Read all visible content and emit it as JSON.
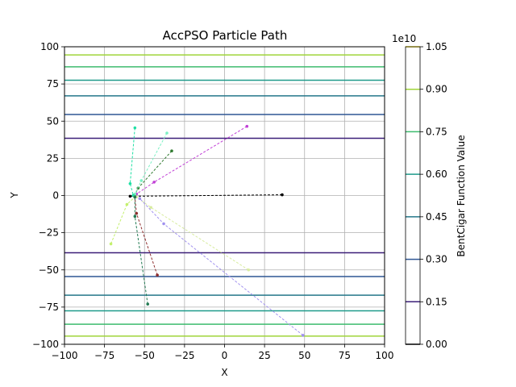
{
  "chart_data": {
    "type": "line",
    "title": "AccPSO Particle Path",
    "xlabel": "X",
    "ylabel": "Y",
    "xlim": [
      -100,
      100
    ],
    "ylim": [
      -100,
      100
    ],
    "xticks": [
      -100,
      -75,
      -50,
      -25,
      0,
      25,
      50,
      75,
      100
    ],
    "yticks": [
      -100,
      -75,
      -50,
      -25,
      0,
      25,
      50,
      75,
      100
    ],
    "xtick_labels": [
      "−100",
      "−75",
      "−50",
      "−25",
      "0",
      "25",
      "50",
      "75",
      "100"
    ],
    "ytick_labels": [
      "−100",
      "−75",
      "−50",
      "−25",
      "0",
      "25",
      "50",
      "75",
      "100"
    ],
    "grid": true,
    "contours": [
      {
        "y": 38.5,
        "level": 0.15,
        "color": "#3b1f78"
      },
      {
        "y": -38.5,
        "level": 0.15,
        "color": "#3b1f78"
      },
      {
        "y": 54.5,
        "level": 0.3,
        "color": "#2f5694"
      },
      {
        "y": -54.5,
        "level": 0.3,
        "color": "#2f5694"
      },
      {
        "y": 67.0,
        "level": 0.45,
        "color": "#24778a"
      },
      {
        "y": -67.0,
        "level": 0.45,
        "color": "#24778a"
      },
      {
        "y": 77.5,
        "level": 0.6,
        "color": "#1f9a8a"
      },
      {
        "y": -77.5,
        "level": 0.6,
        "color": "#1f9a8a"
      },
      {
        "y": 86.5,
        "level": 0.75,
        "color": "#3dbb6e"
      },
      {
        "y": -86.5,
        "level": 0.75,
        "color": "#3dbb6e"
      },
      {
        "y": 94.5,
        "level": 0.9,
        "color": "#9fd43a"
      },
      {
        "y": -94.5,
        "level": 0.9,
        "color": "#9fd43a"
      }
    ],
    "series": [
      {
        "color": "#000000",
        "points": [
          [
            36,
            0.5
          ],
          [
            -59,
            -0.5
          ],
          [
            -57,
            0
          ]
        ]
      },
      {
        "color": "#c13fd6",
        "points": [
          [
            14,
            46.5
          ],
          [
            -44,
            9
          ],
          [
            -55,
            1
          ]
        ]
      },
      {
        "color": "#2f7a2f",
        "points": [
          [
            -33,
            30
          ],
          [
            -54,
            5
          ],
          [
            -56,
            0.5
          ]
        ]
      },
      {
        "color": "#7cf0c4",
        "points": [
          [
            -36,
            42
          ],
          [
            -52,
            10
          ],
          [
            -56,
            1
          ]
        ]
      },
      {
        "color": "#1ee0a4",
        "points": [
          [
            -56,
            45.5
          ],
          [
            -59,
            8
          ],
          [
            -57,
            0
          ]
        ]
      },
      {
        "color": "#c4f06e",
        "points": [
          [
            -71,
            -32.5
          ],
          [
            -61,
            -6
          ],
          [
            -56,
            -1
          ]
        ]
      },
      {
        "color": "#d8eca0",
        "points": [
          [
            15,
            -50
          ],
          [
            -46,
            -8
          ],
          [
            -55,
            -1
          ]
        ]
      },
      {
        "color": "#a090ef",
        "points": [
          [
            49,
            -94
          ],
          [
            -38,
            -19
          ],
          [
            -53,
            -2
          ]
        ]
      },
      {
        "color": "#8e2e2e",
        "points": [
          [
            -42,
            -53.5
          ],
          [
            -55,
            -12
          ],
          [
            -56,
            -1
          ]
        ]
      },
      {
        "color": "#237a53",
        "points": [
          [
            -48,
            -73
          ],
          [
            -56,
            -14
          ],
          [
            -56,
            -1
          ]
        ]
      }
    ],
    "colorbar": {
      "label": "BentCigar Function Value",
      "multiplier": "1e10",
      "ticks": [
        0.0,
        0.15,
        0.3,
        0.45,
        0.6,
        0.75,
        0.9,
        1.05
      ],
      "tick_labels": [
        "0.00",
        "0.15",
        "0.30",
        "0.45",
        "0.60",
        "0.75",
        "0.90",
        "1.05"
      ],
      "colors": [
        "#000000",
        "#3b1f78",
        "#2f5694",
        "#24778a",
        "#1f9a8a",
        "#3dbb6e",
        "#9fd43a",
        "#fde725"
      ]
    }
  }
}
